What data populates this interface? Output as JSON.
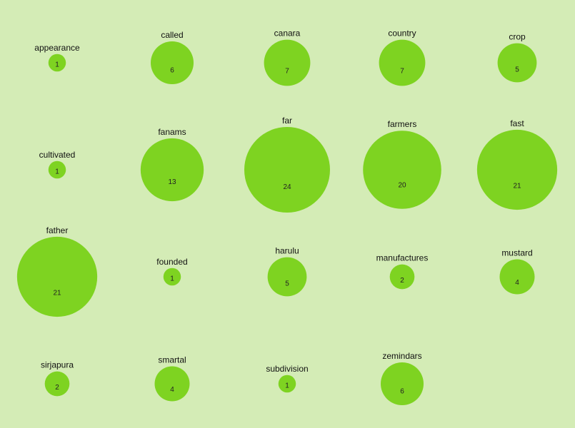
{
  "chart_data": {
    "type": "bubble-grid",
    "background_color": "#d4ecb6",
    "bubble_color": "#7ed321",
    "items": [
      {
        "word": "appearance",
        "value": 1
      },
      {
        "word": "called",
        "value": 6
      },
      {
        "word": "canara",
        "value": 7
      },
      {
        "word": "country",
        "value": 7
      },
      {
        "word": "crop",
        "value": 5
      },
      {
        "word": "cultivated",
        "value": 1
      },
      {
        "word": "fanams",
        "value": 13
      },
      {
        "word": "far",
        "value": 24
      },
      {
        "word": "farmers",
        "value": 20
      },
      {
        "word": "fast",
        "value": 21
      },
      {
        "word": "father",
        "value": 21
      },
      {
        "word": "founded",
        "value": 1
      },
      {
        "word": "harulu",
        "value": 5
      },
      {
        "word": "manufactures",
        "value": 2
      },
      {
        "word": "mustard",
        "value": 4
      },
      {
        "word": "sirjapura",
        "value": 2
      },
      {
        "word": "smartal",
        "value": 4
      },
      {
        "word": "subdivision",
        "value": 1
      },
      {
        "word": "zemindars",
        "value": 6
      }
    ]
  }
}
